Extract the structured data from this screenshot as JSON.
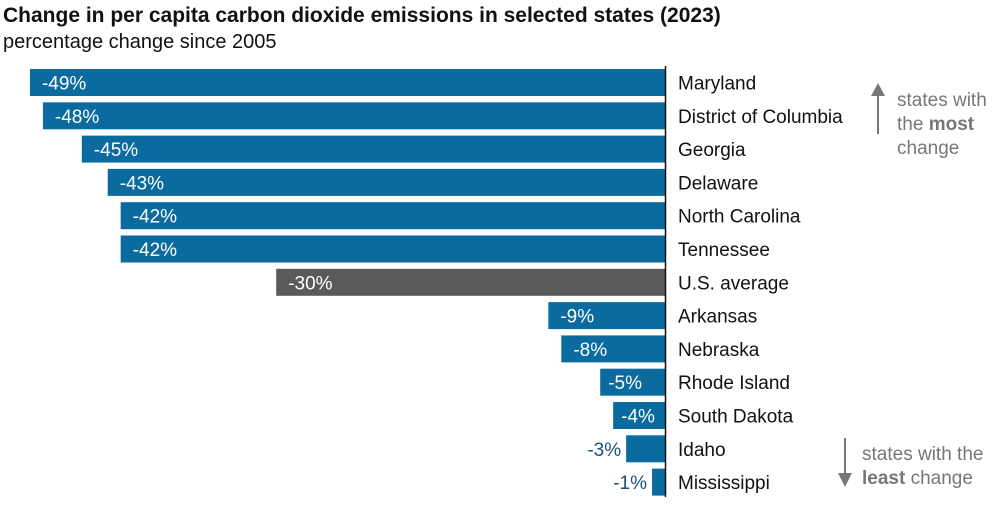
{
  "chart_data": {
    "type": "bar",
    "orientation": "horizontal",
    "title": "Change in per capita carbon dioxide emissions in selected states (2023)",
    "subtitle": "percentage change since 2005",
    "categories": [
      "Maryland",
      "District of Columbia",
      "Georgia",
      "Delaware",
      "North Carolina",
      "Tennessee",
      "U.S. average",
      "Arkansas",
      "Nebraska",
      "Rhode Island",
      "South Dakota",
      "Idaho",
      "Mississippi"
    ],
    "values": [
      -49,
      -48,
      -45,
      -43,
      -42,
      -42,
      -30,
      -9,
      -8,
      -5,
      -4,
      -3,
      -1
    ],
    "labels": [
      "-49%",
      "-48%",
      "-45%",
      "-43%",
      "-42%",
      "-42%",
      "-30%",
      "-9%",
      "-8%",
      "-5%",
      "-4%",
      "-3%",
      "-1%"
    ],
    "highlight": "U.S. average",
    "xlim": [
      -51,
      0
    ],
    "colors": {
      "bar": "#0b6b9e",
      "highlight": "#5a5a5a",
      "outside_label": "#1b4f7a",
      "note": "#777777"
    },
    "annotations": {
      "top": {
        "line1": "states with",
        "line2_pre": "the ",
        "line2_bold": "most",
        "line3": "change"
      },
      "bottom": {
        "line1": "states with the",
        "line2_bold": "least",
        "line2_post": " change"
      }
    }
  }
}
